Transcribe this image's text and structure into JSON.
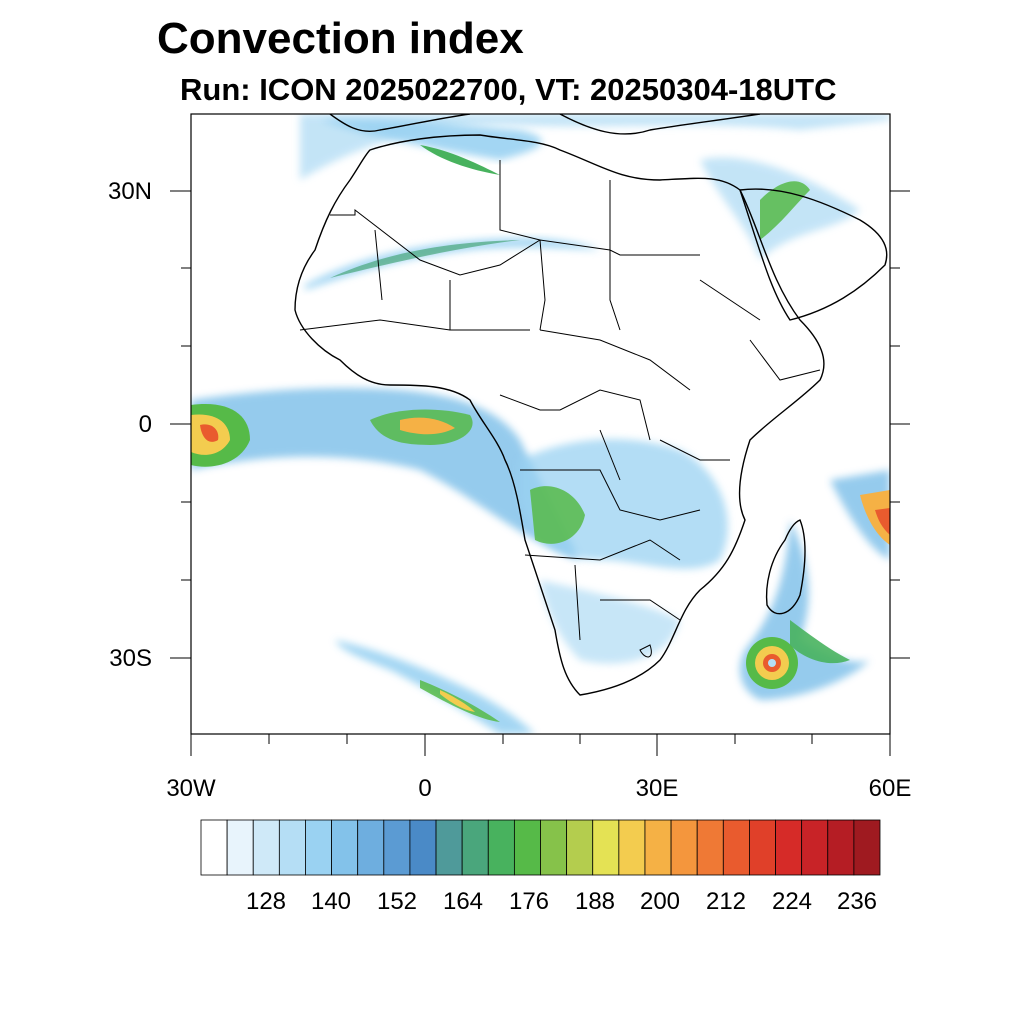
{
  "title": "Convection index",
  "subtitle": "Run: ICON 2025022700,  VT: 20250304-18UTC",
  "axes": {
    "y_ticks": [
      "30N",
      "0",
      "30S"
    ],
    "x_ticks": [
      "30W",
      "0",
      "30E",
      "60E"
    ]
  },
  "colorbar": {
    "labels": [
      "128",
      "140",
      "152",
      "164",
      "176",
      "188",
      "200",
      "212",
      "224",
      "236"
    ],
    "colors": [
      "#ffffff",
      "#e8f4fc",
      "#cfe9f8",
      "#b5def5",
      "#9ad2f2",
      "#83c2ea",
      "#6eaedf",
      "#5b9bd3",
      "#4a8ac7",
      "#4f9a9a",
      "#4aa67c",
      "#48b25e",
      "#56ba48",
      "#86c24a",
      "#b4cd4e",
      "#e4e254",
      "#f3cc4f",
      "#f5b145",
      "#f4963d",
      "#ef7935",
      "#e95b2e",
      "#e04029",
      "#d62b28",
      "#c82327",
      "#b51d24",
      "#9f1a20"
    ]
  }
}
